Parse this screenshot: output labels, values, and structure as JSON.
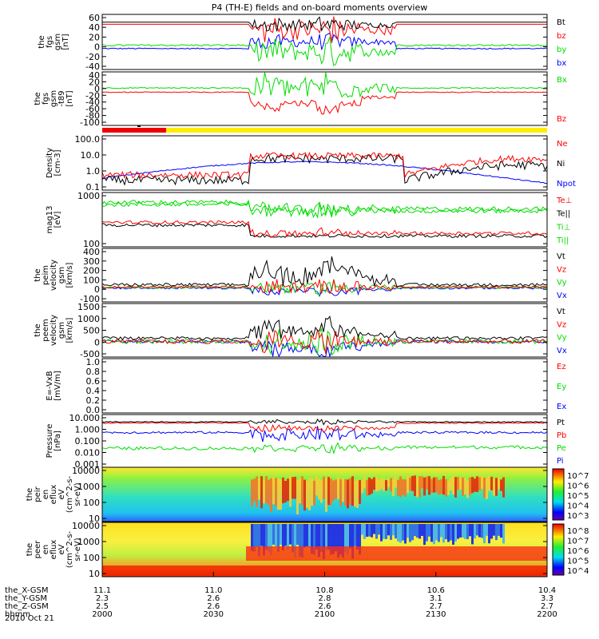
{
  "title": "P4 (TH-E) fields and on-board moments overview",
  "date_label": "2010 Oct 21",
  "time_axis": {
    "rows": [
      {
        "label": "the_X-GSM",
        "values": [
          "11.1",
          "11.0",
          "10.8",
          "10.6",
          "10.4"
        ]
      },
      {
        "label": "the_Y-GSM",
        "values": [
          "2.3",
          "2.6",
          "2.8",
          "3.1",
          "3.3"
        ]
      },
      {
        "label": "the_Z-GSM",
        "values": [
          "2.5",
          "2.6",
          "2.6",
          "2.7",
          "2.7"
        ]
      },
      {
        "label": "hhmm",
        "values": [
          "2000",
          "2030",
          "2100",
          "2130",
          "2200"
        ]
      }
    ]
  },
  "colorbars": [
    {
      "panel": "eflux_ion",
      "ticks": [
        "10^7",
        "10^6",
        "10^5",
        "10^4",
        "10^3"
      ]
    },
    {
      "panel": "eflux_electron",
      "ticks": [
        "10^8",
        "10^7",
        "10^6",
        "10^5",
        "10^4"
      ]
    }
  ],
  "chart_data": [
    {
      "id": "fgs_gsm",
      "type": "line",
      "ylabel": [
        "the",
        "fgs",
        "gsm",
        "[nT]"
      ],
      "yticks": [
        "60",
        "40",
        "20",
        "0",
        "-20",
        "-40"
      ],
      "ylim": [
        -50,
        62
      ],
      "series": [
        {
          "name": "Bt",
          "color": "#000000"
        },
        {
          "name": "bz",
          "color": "#ff0000"
        },
        {
          "name": "by",
          "color": "#00dd00"
        },
        {
          "name": "bx",
          "color": "#0000ff"
        }
      ]
    },
    {
      "id": "fgs_gsm_t89",
      "type": "line",
      "ylabel": [
        "the",
        "fgs",
        "gsm",
        "-t89",
        "[nT]"
      ],
      "yticks": [
        "40",
        "20",
        "0",
        "-20",
        "-40",
        "-60",
        "-80",
        "-100"
      ],
      "ylim": [
        -110,
        45
      ],
      "series": [
        {
          "name": "Bx",
          "color": "#00dd00"
        },
        {
          "name": "Bz",
          "color": "#ff0000"
        }
      ]
    },
    {
      "id": "density",
      "type": "line",
      "ylabel": [
        "Density",
        "[cm-3]"
      ],
      "yticks": [
        "100.0",
        "10.0",
        "1.0",
        "0.1"
      ],
      "log": true,
      "series": [
        {
          "name": "Ne",
          "color": "#ff0000"
        },
        {
          "name": "Ni",
          "color": "#000000"
        },
        {
          "name": "Npot",
          "color": "#0000ff"
        }
      ]
    },
    {
      "id": "temperature",
      "type": "line",
      "ylabel": [
        "mag13",
        "[eV]"
      ],
      "yticks": [
        "1000",
        "100"
      ],
      "log": true,
      "series": [
        {
          "name": "Te⊥",
          "color": "#ff0000"
        },
        {
          "name": "Te||",
          "color": "#000000"
        },
        {
          "name": "Ti⊥",
          "color": "#00dd00"
        },
        {
          "name": "Ti||",
          "color": "#00dd00"
        }
      ]
    },
    {
      "id": "peim_velocity",
      "type": "line",
      "ylabel": [
        "the",
        "peim",
        "velocity",
        "gsm",
        "[km/s]"
      ],
      "yticks": [
        "400",
        "300",
        "200",
        "100",
        "0",
        "-100"
      ],
      "ylim": [
        -150,
        420
      ],
      "series": [
        {
          "name": "Vt",
          "color": "#000000"
        },
        {
          "name": "Vz",
          "color": "#ff0000"
        },
        {
          "name": "Vy",
          "color": "#00dd00"
        },
        {
          "name": "Vx",
          "color": "#0000ff"
        }
      ]
    },
    {
      "id": "peem_velocity",
      "type": "line",
      "ylabel": [
        "the",
        "peem",
        "velocity",
        "gsm",
        "[km/s]"
      ],
      "yticks": [
        "1500",
        "1000",
        "500",
        "0",
        "-500"
      ],
      "ylim": [
        -650,
        1600
      ],
      "series": [
        {
          "name": "Vt",
          "color": "#000000"
        },
        {
          "name": "Vz",
          "color": "#ff0000"
        },
        {
          "name": "Vy",
          "color": "#00dd00"
        },
        {
          "name": "Vx",
          "color": "#0000ff"
        }
      ]
    },
    {
      "id": "efield",
      "type": "line",
      "ylabel": [
        "E=-VxB",
        "[mV/m]"
      ],
      "yticks": [
        "1.0",
        "0.8",
        "0.6",
        "0.4",
        "0.2",
        "0.0"
      ],
      "ylim": [
        0,
        1
      ],
      "series": [
        {
          "name": "Ez",
          "color": "#ff0000"
        },
        {
          "name": "Ey",
          "color": "#00dd00"
        },
        {
          "name": "Ex",
          "color": "#0000ff"
        }
      ]
    },
    {
      "id": "pressure",
      "type": "line",
      "ylabel": [
        "Pressure",
        "[nPa]"
      ],
      "yticks": [
        "10.000",
        "1.000",
        "0.100",
        "0.010",
        "0.001"
      ],
      "log": true,
      "series": [
        {
          "name": "Pt",
          "color": "#000000"
        },
        {
          "name": "Pb",
          "color": "#ff0000"
        },
        {
          "name": "Pe",
          "color": "#00dd00"
        },
        {
          "name": "Pi",
          "color": "#0000ff"
        }
      ]
    },
    {
      "id": "eflux_ion",
      "type": "heatmap",
      "ylabel": [
        "the",
        "peir",
        "en",
        "eflux",
        "eV",
        "(cm^2-s-",
        "sr-eV)"
      ],
      "yticks": [
        "10000",
        "1000",
        "100",
        "10"
      ],
      "log": true
    },
    {
      "id": "eflux_electron",
      "type": "heatmap",
      "ylabel": [
        "the",
        "peer",
        "en",
        "eflux",
        "eV",
        "(cm^2-s-",
        "sr-eV)"
      ],
      "yticks": [
        "10000",
        "1000",
        "100",
        "10"
      ],
      "log": true
    }
  ]
}
